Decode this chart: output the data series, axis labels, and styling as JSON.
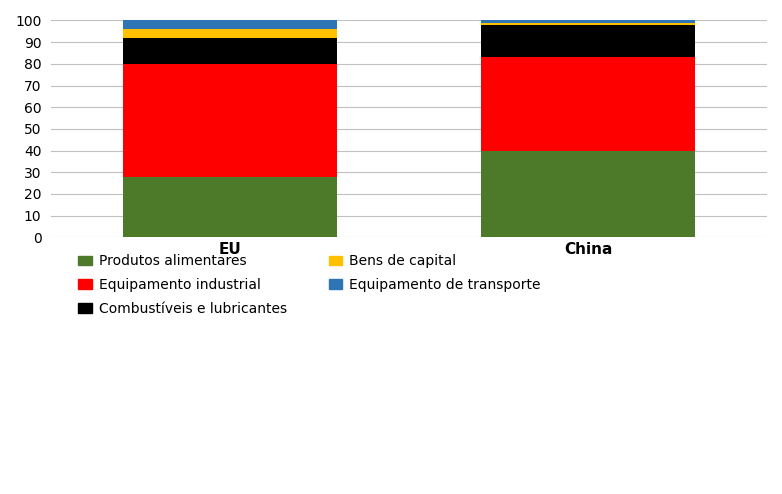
{
  "categories": [
    "EU",
    "China"
  ],
  "series": [
    {
      "label": "Produtos alimentares",
      "values": [
        28,
        40
      ],
      "color": "#4d7a29"
    },
    {
      "label": "Equipamento industrial",
      "values": [
        52,
        43
      ],
      "color": "#ff0000"
    },
    {
      "label": "Combustíveis e lubricantes",
      "values": [
        12,
        15
      ],
      "color": "#000000"
    },
    {
      "label": "Bens de capital",
      "values": [
        4,
        1
      ],
      "color": "#ffc000"
    },
    {
      "label": "Equipamento de transporte",
      "values": [
        4,
        1
      ],
      "color": "#2e75b6"
    }
  ],
  "ylim": [
    0,
    100
  ],
  "yticks": [
    0,
    10,
    20,
    30,
    40,
    50,
    60,
    70,
    80,
    90,
    100
  ],
  "x_positions": [
    1,
    3
  ],
  "x_lim": [
    0,
    4
  ],
  "bar_width": 1.2,
  "background_color": "#ffffff",
  "grid_color": "#c0c0c0",
  "figsize": [
    7.82,
    4.94
  ],
  "dpi": 100,
  "legend_order": [
    0,
    1,
    2,
    3,
    4
  ],
  "legend_ncols": 2
}
